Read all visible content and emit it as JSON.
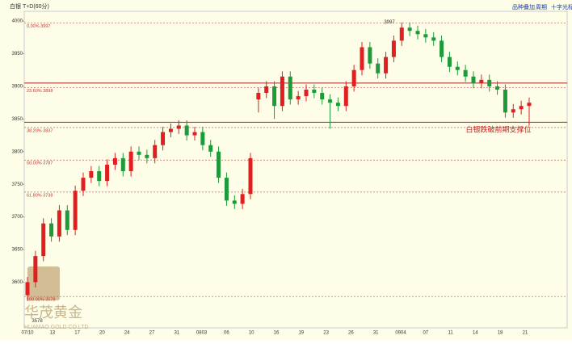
{
  "chart_data": {
    "type": "candlestick",
    "title": "白银 T+D(60分)",
    "toolbar": [
      "品种叠加",
      "周期",
      "十字光标"
    ],
    "annotation": "白银跌破前期支撑位",
    "peak_label": {
      "value": 3997,
      "label": "3997"
    },
    "low_label": {
      "value": 3578,
      "label": "3578"
    },
    "logo": {
      "name": "华茂黄金",
      "sub": "HUAMAO GOLD CO.LTD"
    },
    "up_color": "#e02020",
    "down_color": "#1e9a3a",
    "ylim": [
      3530,
      4015
    ],
    "yticks": [
      3600,
      3650,
      3700,
      3750,
      3800,
      3850,
      3900,
      3950,
      4000
    ],
    "fib_levels": [
      {
        "value": 3997,
        "label": "0.00% 3997"
      },
      {
        "value": 3898,
        "label": "23.60% 3898"
      },
      {
        "value": 3837,
        "label": "38.20% 3837"
      },
      {
        "value": 3787,
        "label": "50.00% 3787"
      },
      {
        "value": 3738,
        "label": "61.80% 3738"
      },
      {
        "value": 3578,
        "label": "100.00% 3578"
      }
    ],
    "support_lines": [
      3905,
      3845
    ],
    "x_labels": [
      "07/10",
      "13",
      "17",
      "20",
      "24",
      "27",
      "31",
      "0803",
      "06",
      "10",
      "16",
      "19",
      "23",
      "26",
      "31",
      "0904",
      "07",
      "11",
      "14",
      "18",
      "21"
    ],
    "open": [
      3580,
      3600,
      3640,
      3690,
      3670,
      3710,
      3680,
      3740,
      3760,
      3770,
      3755,
      3780,
      3790,
      3770,
      3800,
      3795,
      3790,
      3810,
      3830,
      3835,
      3840,
      3825,
      3830,
      3810,
      3800,
      3760,
      3725,
      3720,
      3735,
      3880,
      3890,
      3900,
      3870,
      3915,
      3880,
      3885,
      3895,
      3890,
      3880,
      3875,
      3870,
      3900,
      3925,
      3960,
      3935,
      3920,
      3945,
      3970,
      3990,
      3985,
      3980,
      3975,
      3970,
      3945,
      3930,
      3925,
      3915,
      3905,
      3910,
      3900,
      3895,
      3860,
      3865,
      3870
    ],
    "high": [
      3608,
      3648,
      3698,
      3698,
      3718,
      3718,
      3748,
      3768,
      3778,
      3778,
      3788,
      3798,
      3798,
      3808,
      3808,
      3803,
      3818,
      3838,
      3843,
      3848,
      3848,
      3838,
      3838,
      3818,
      3808,
      3768,
      3733,
      3743,
      3798,
      3898,
      3908,
      3908,
      3923,
      3923,
      3893,
      3903,
      3903,
      3898,
      3888,
      3883,
      3908,
      3933,
      3968,
      3968,
      3943,
      3953,
      3978,
      3998,
      3998,
      3993,
      3988,
      3983,
      3978,
      3953,
      3938,
      3933,
      3923,
      3918,
      3918,
      3908,
      3903,
      3873,
      3878,
      3883
    ],
    "low": [
      3572,
      3592,
      3632,
      3662,
      3662,
      3672,
      3672,
      3732,
      3752,
      3747,
      3747,
      3772,
      3762,
      3762,
      3787,
      3782,
      3782,
      3802,
      3822,
      3827,
      3817,
      3817,
      3802,
      3792,
      3752,
      3717,
      3712,
      3712,
      3727,
      3860,
      3882,
      3850,
      3862,
      3872,
      3872,
      3877,
      3882,
      3872,
      3835,
      3862,
      3862,
      3892,
      3917,
      3927,
      3912,
      3912,
      3937,
      3962,
      3977,
      3972,
      3967,
      3962,
      3937,
      3922,
      3917,
      3907,
      3897,
      3897,
      3892,
      3887,
      3852,
      3852,
      3857,
      3840
    ],
    "close": [
      3600,
      3640,
      3690,
      3670,
      3710,
      3680,
      3740,
      3760,
      3770,
      3755,
      3780,
      3790,
      3770,
      3800,
      3795,
      3790,
      3810,
      3830,
      3835,
      3840,
      3825,
      3830,
      3810,
      3800,
      3760,
      3725,
      3720,
      3735,
      3790,
      3890,
      3900,
      3870,
      3915,
      3880,
      3885,
      3895,
      3890,
      3880,
      3875,
      3870,
      3900,
      3925,
      3960,
      3935,
      3920,
      3945,
      3970,
      3990,
      3985,
      3980,
      3975,
      3970,
      3945,
      3930,
      3925,
      3915,
      3905,
      3910,
      3900,
      3895,
      3860,
      3865,
      3870,
      3875
    ]
  }
}
